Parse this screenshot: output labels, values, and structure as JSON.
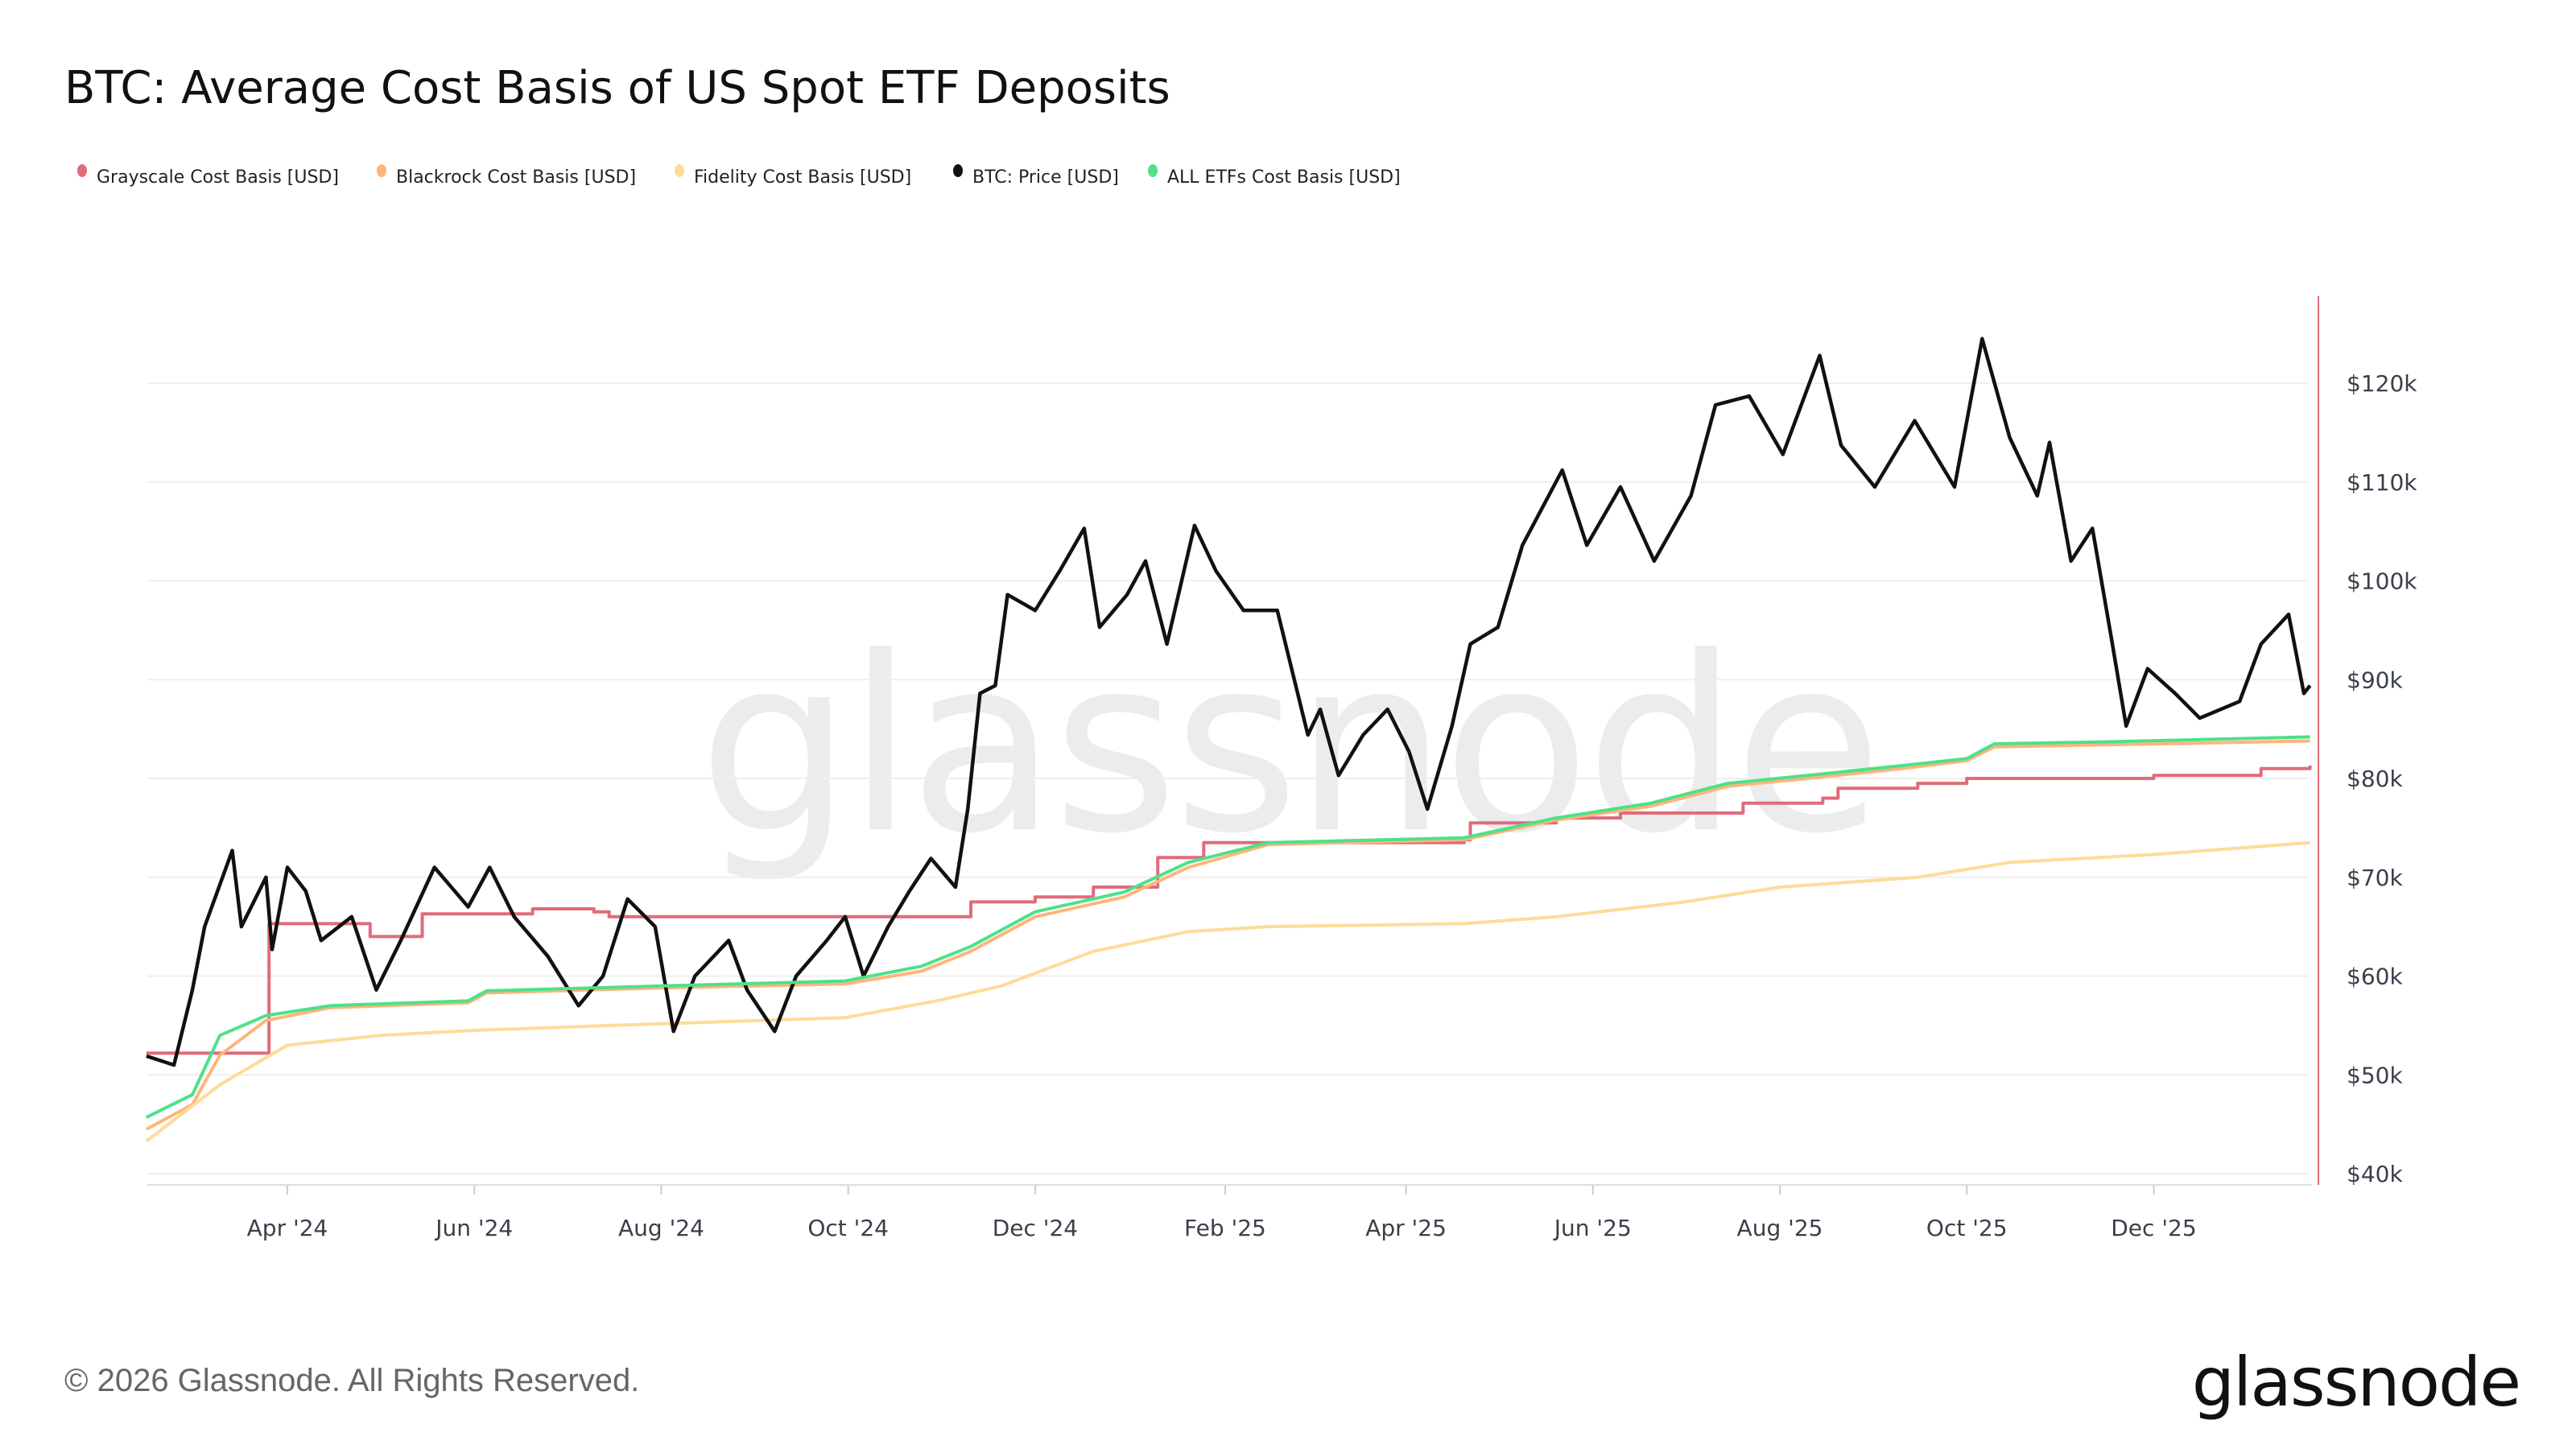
{
  "title": "BTC: Average Cost Basis of US Spot ETF Deposits",
  "footer": "© 2026 Glassnode. All Rights Reserved.",
  "logo": "glassnode",
  "watermark": "glassnode",
  "chart_data": {
    "type": "line",
    "title": "BTC: Average Cost Basis of US Spot ETF Deposits",
    "legend_placement": "top-left",
    "grid": "horizontal",
    "ylim": [
      40000,
      120000
    ],
    "y_ticks": [
      {
        "value": 40000,
        "label": "$40k"
      },
      {
        "value": 50000,
        "label": "$50k"
      },
      {
        "value": 60000,
        "label": "$60k"
      },
      {
        "value": 70000,
        "label": "$70k"
      },
      {
        "value": 80000,
        "label": "$80k"
      },
      {
        "value": 90000,
        "label": "$90k"
      },
      {
        "value": 100000,
        "label": "$100k"
      },
      {
        "value": 110000,
        "label": "$110k"
      },
      {
        "value": 120000,
        "label": "$120k"
      }
    ],
    "x_ticks": [
      {
        "date": "2024-04-01",
        "label": "Apr '24"
      },
      {
        "date": "2024-06-01",
        "label": "Jun '24"
      },
      {
        "date": "2024-08-01",
        "label": "Aug '24"
      },
      {
        "date": "2024-10-01",
        "label": "Oct '24"
      },
      {
        "date": "2024-12-01",
        "label": "Dec '24"
      },
      {
        "date": "2025-02-01",
        "label": "Feb '25"
      },
      {
        "date": "2025-04-01",
        "label": "Apr '25"
      },
      {
        "date": "2025-06-01",
        "label": "Jun '25"
      },
      {
        "date": "2025-08-01",
        "label": "Aug '25"
      },
      {
        "date": "2025-10-01",
        "label": "Oct '25"
      },
      {
        "date": "2025-12-01",
        "label": "Dec '25"
      }
    ],
    "xlim": [
      "2024-02-15",
      "2026-01-21"
    ],
    "series": [
      {
        "name": "Grayscale Cost Basis [USD]",
        "color": "#e06c7a",
        "step": true,
        "points": [
          [
            "2024-02-15",
            52200
          ],
          [
            "2024-03-24",
            52200
          ],
          [
            "2024-03-26",
            65300
          ],
          [
            "2024-04-25",
            65300
          ],
          [
            "2024-04-28",
            64000
          ],
          [
            "2024-05-08",
            64000
          ],
          [
            "2024-05-15",
            66300
          ],
          [
            "2024-06-20",
            66800
          ],
          [
            "2024-07-10",
            66500
          ],
          [
            "2024-07-15",
            66000
          ],
          [
            "2024-10-30",
            66000
          ],
          [
            "2024-11-10",
            67500
          ],
          [
            "2024-12-01",
            68000
          ],
          [
            "2024-12-20",
            69000
          ],
          [
            "2025-01-10",
            72000
          ],
          [
            "2025-01-25",
            73500
          ],
          [
            "2025-04-20",
            73800
          ],
          [
            "2025-04-22",
            75500
          ],
          [
            "2025-05-20",
            76000
          ],
          [
            "2025-06-10",
            76500
          ],
          [
            "2025-07-20",
            77500
          ],
          [
            "2025-08-15",
            78000
          ],
          [
            "2025-08-20",
            79000
          ],
          [
            "2025-09-15",
            79500
          ],
          [
            "2025-10-01",
            80000
          ],
          [
            "2025-12-01",
            80300
          ],
          [
            "2026-01-05",
            81000
          ],
          [
            "2026-01-21",
            81300
          ]
        ]
      },
      {
        "name": "Blackrock Cost Basis [USD]",
        "color": "#ffb57a",
        "points": [
          [
            "2024-02-15",
            44500
          ],
          [
            "2024-03-01",
            47000
          ],
          [
            "2024-03-10",
            52000
          ],
          [
            "2024-03-25",
            55500
          ],
          [
            "2024-04-15",
            56800
          ],
          [
            "2024-05-30",
            57300
          ],
          [
            "2024-06-05",
            58300
          ],
          [
            "2024-08-01",
            58800
          ],
          [
            "2024-09-30",
            59200
          ],
          [
            "2024-10-25",
            60500
          ],
          [
            "2024-11-10",
            62500
          ],
          [
            "2024-12-01",
            66000
          ],
          [
            "2024-12-30",
            68000
          ],
          [
            "2025-01-20",
            71000
          ],
          [
            "2025-02-15",
            73300
          ],
          [
            "2025-04-20",
            73800
          ],
          [
            "2025-05-20",
            75800
          ],
          [
            "2025-06-20",
            77200
          ],
          [
            "2025-07-15",
            79200
          ],
          [
            "2025-08-10",
            80000
          ],
          [
            "2025-09-10",
            81000
          ],
          [
            "2025-10-01",
            81800
          ],
          [
            "2025-10-10",
            83200
          ],
          [
            "2025-11-15",
            83400
          ],
          [
            "2026-01-21",
            83800
          ]
        ]
      },
      {
        "name": "Fidelity Cost Basis [USD]",
        "color": "#ffdb99",
        "points": [
          [
            "2024-02-15",
            43300
          ],
          [
            "2024-03-10",
            49000
          ],
          [
            "2024-04-01",
            53000
          ],
          [
            "2024-05-01",
            54000
          ],
          [
            "2024-06-01",
            54500
          ],
          [
            "2024-07-15",
            55000
          ],
          [
            "2024-09-30",
            55800
          ],
          [
            "2024-10-30",
            57500
          ],
          [
            "2024-11-20",
            59000
          ],
          [
            "2024-12-20",
            62500
          ],
          [
            "2025-01-20",
            64500
          ],
          [
            "2025-02-15",
            65000
          ],
          [
            "2025-04-20",
            65300
          ],
          [
            "2025-05-20",
            66000
          ],
          [
            "2025-07-01",
            67500
          ],
          [
            "2025-08-01",
            69000
          ],
          [
            "2025-09-15",
            70000
          ],
          [
            "2025-10-15",
            71500
          ],
          [
            "2025-12-01",
            72300
          ],
          [
            "2026-01-21",
            73500
          ]
        ]
      },
      {
        "name": "BTC: Price [USD]",
        "color": "#111111",
        "points": [
          [
            "2024-02-15",
            51900
          ],
          [
            "2024-02-24",
            51000
          ],
          [
            "2024-03-01",
            58600
          ],
          [
            "2024-03-05",
            65000
          ],
          [
            "2024-03-14",
            72700
          ],
          [
            "2024-03-17",
            65000
          ],
          [
            "2024-03-25",
            70000
          ],
          [
            "2024-03-27",
            62700
          ],
          [
            "2024-04-01",
            71000
          ],
          [
            "2024-04-07",
            68600
          ],
          [
            "2024-04-12",
            63600
          ],
          [
            "2024-04-22",
            66000
          ],
          [
            "2024-04-30",
            58600
          ],
          [
            "2024-05-08",
            63600
          ],
          [
            "2024-05-19",
            71000
          ],
          [
            "2024-05-30",
            67000
          ],
          [
            "2024-06-06",
            71000
          ],
          [
            "2024-06-14",
            66000
          ],
          [
            "2024-06-25",
            62000
          ],
          [
            "2024-07-05",
            57000
          ],
          [
            "2024-07-13",
            60000
          ],
          [
            "2024-07-21",
            67800
          ],
          [
            "2024-07-30",
            65000
          ],
          [
            "2024-08-05",
            54400
          ],
          [
            "2024-08-12",
            60000
          ],
          [
            "2024-08-23",
            63600
          ],
          [
            "2024-08-29",
            58600
          ],
          [
            "2024-09-07",
            54400
          ],
          [
            "2024-09-14",
            60000
          ],
          [
            "2024-09-24",
            63600
          ],
          [
            "2024-09-30",
            66000
          ],
          [
            "2024-10-06",
            60000
          ],
          [
            "2024-10-14",
            65000
          ],
          [
            "2024-10-21",
            68600
          ],
          [
            "2024-10-28",
            71900
          ],
          [
            "2024-11-05",
            69000
          ],
          [
            "2024-11-09",
            76900
          ],
          [
            "2024-11-13",
            88600
          ],
          [
            "2024-11-18",
            89400
          ],
          [
            "2024-11-22",
            98600
          ],
          [
            "2024-12-01",
            97000
          ],
          [
            "2024-12-09",
            101000
          ],
          [
            "2024-12-17",
            105300
          ],
          [
            "2024-12-22",
            95300
          ],
          [
            "2024-12-31",
            98600
          ],
          [
            "2025-01-06",
            102000
          ],
          [
            "2025-01-13",
            93600
          ],
          [
            "2025-01-22",
            105600
          ],
          [
            "2025-01-29",
            101000
          ],
          [
            "2025-02-07",
            97000
          ],
          [
            "2025-02-18",
            97000
          ],
          [
            "2025-02-28",
            84400
          ],
          [
            "2025-03-04",
            87000
          ],
          [
            "2025-03-10",
            80300
          ],
          [
            "2025-03-18",
            84400
          ],
          [
            "2025-03-26",
            87000
          ],
          [
            "2025-04-02",
            82700
          ],
          [
            "2025-04-08",
            76900
          ],
          [
            "2025-04-16",
            85300
          ],
          [
            "2025-04-22",
            93600
          ],
          [
            "2025-05-01",
            95300
          ],
          [
            "2025-05-09",
            103600
          ],
          [
            "2025-05-22",
            111200
          ],
          [
            "2025-05-30",
            103600
          ],
          [
            "2025-06-10",
            109500
          ],
          [
            "2025-06-21",
            102000
          ],
          [
            "2025-07-03",
            108600
          ],
          [
            "2025-07-11",
            117800
          ],
          [
            "2025-07-22",
            118700
          ],
          [
            "2025-08-02",
            112800
          ],
          [
            "2025-08-14",
            122800
          ],
          [
            "2025-08-21",
            113700
          ],
          [
            "2025-09-01",
            109500
          ],
          [
            "2025-09-14",
            116200
          ],
          [
            "2025-09-27",
            109500
          ],
          [
            "2025-10-06",
            124500
          ],
          [
            "2025-10-15",
            114500
          ],
          [
            "2025-10-24",
            108600
          ],
          [
            "2025-10-28",
            114000
          ],
          [
            "2025-11-04",
            102000
          ],
          [
            "2025-11-11",
            105300
          ],
          [
            "2025-11-17",
            94500
          ],
          [
            "2025-11-22",
            85300
          ],
          [
            "2025-11-29",
            91100
          ],
          [
            "2025-12-08",
            88600
          ],
          [
            "2025-12-16",
            86100
          ],
          [
            "2025-12-29",
            87800
          ],
          [
            "2026-01-05",
            93600
          ],
          [
            "2026-01-14",
            96600
          ],
          [
            "2026-01-19",
            88600
          ],
          [
            "2026-01-21",
            89400
          ]
        ]
      },
      {
        "name": "ALL ETFs Cost Basis [USD]",
        "color": "#4ee08a",
        "points": [
          [
            "2024-02-15",
            45700
          ],
          [
            "2024-03-01",
            48000
          ],
          [
            "2024-03-10",
            54000
          ],
          [
            "2024-03-25",
            56000
          ],
          [
            "2024-04-15",
            57000
          ],
          [
            "2024-05-30",
            57500
          ],
          [
            "2024-06-05",
            58500
          ],
          [
            "2024-08-01",
            59000
          ],
          [
            "2024-09-30",
            59500
          ],
          [
            "2024-10-25",
            61000
          ],
          [
            "2024-11-10",
            63000
          ],
          [
            "2024-12-01",
            66500
          ],
          [
            "2024-12-30",
            68500
          ],
          [
            "2025-01-20",
            71500
          ],
          [
            "2025-02-15",
            73500
          ],
          [
            "2025-04-20",
            74000
          ],
          [
            "2025-05-20",
            76000
          ],
          [
            "2025-06-20",
            77500
          ],
          [
            "2025-07-15",
            79500
          ],
          [
            "2025-08-10",
            80300
          ],
          [
            "2025-09-10",
            81300
          ],
          [
            "2025-10-01",
            82000
          ],
          [
            "2025-10-10",
            83500
          ],
          [
            "2025-11-15",
            83700
          ],
          [
            "2026-01-21",
            84200
          ]
        ]
      }
    ]
  }
}
